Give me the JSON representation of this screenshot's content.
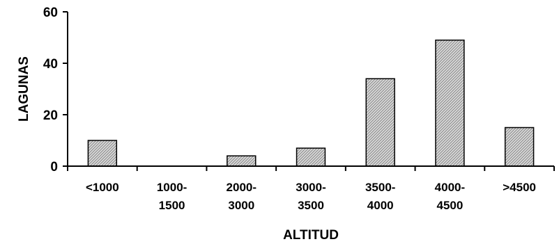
{
  "chart_data": {
    "type": "bar",
    "categories": [
      [
        "<1000"
      ],
      [
        "1000-",
        "1500"
      ],
      [
        "2000-",
        "3000"
      ],
      [
        "3000-",
        "3500"
      ],
      [
        "3500-",
        "4000"
      ],
      [
        "4000-",
        "4500"
      ],
      [
        ">4500"
      ]
    ],
    "values": [
      10,
      0,
      4,
      7,
      34,
      49,
      15
    ],
    "xlabel": "ALTITUD",
    "ylabel": "LAGUNAS",
    "ylim": [
      0,
      60
    ],
    "yticks": [
      0,
      20,
      40,
      60
    ],
    "grid": false,
    "legend": "none",
    "bar_fill": "#c8c8c8",
    "bar_stroke": "#000000"
  }
}
